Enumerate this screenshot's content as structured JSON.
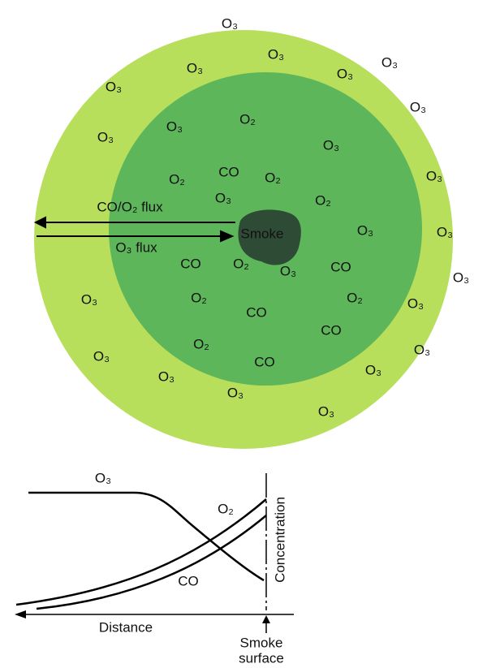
{
  "diagram": {
    "labels": [
      "O₃",
      "O₃",
      "O₃",
      "O₃",
      "O₃",
      "O₃",
      "O₃",
      "O₃",
      "O₃",
      "O₃",
      "O₃",
      "O₃",
      "O₃",
      "O₃",
      "O₃",
      "O₃",
      "O₃",
      "O₃",
      "O₃",
      "O₃",
      "O₃",
      "O₃",
      "O₃",
      "O₃",
      "O₂",
      "CO",
      "O₂",
      "O₂",
      "O₂",
      "CO",
      "O₂",
      "CO",
      "O₂",
      "O₂",
      "CO",
      "CO",
      "O₂",
      "CO"
    ],
    "smoke": "Smoke",
    "flux_out": "CO/O₂ flux",
    "flux_in": "O₃ flux"
  },
  "graph": {
    "o3": "O₃",
    "o2": "O₂",
    "co": "CO",
    "y_label": "Concentration",
    "x_label": "Distance",
    "surface": [
      "Smoke",
      "surface"
    ]
  }
}
